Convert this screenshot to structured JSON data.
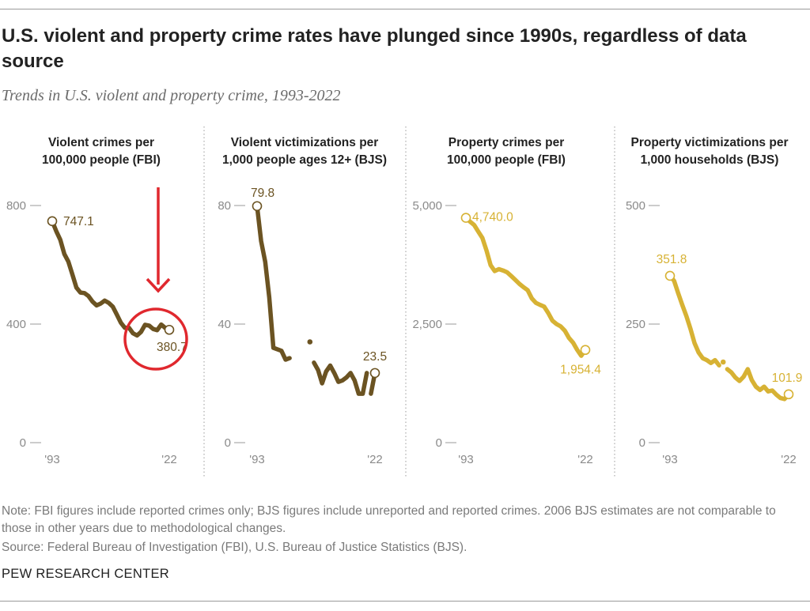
{
  "header": {
    "title": "U.S. violent and property crime rates have plunged since 1990s, regardless of data source",
    "subtitle": "Trends in U.S. violent and property crime, 1993-2022"
  },
  "footer": {
    "note": "Note: FBI figures include reported crimes only; BJS figures include unreported and reported crimes. 2006 BJS estimates are not comparable to those in other years due to methodological changes.",
    "source": "Source: Federal Bureau of Investigation (FBI), U.S. Bureau of Justice Statistics (BJS).",
    "brand": "PEW RESEARCH CENTER"
  },
  "colors": {
    "violent": "#6b5322",
    "property": "#d7b234",
    "axis": "#9a9a9a",
    "tick_text": "#8a8a8a",
    "annotation": "#e0282e"
  },
  "annotation": {
    "type": "arrow-and-circle",
    "panel": 0,
    "target_value": "380.7"
  },
  "chart_data": [
    {
      "type": "line",
      "title_lines": [
        "Violent crimes per",
        "100,000 people (FBI)"
      ],
      "color": "violent",
      "x_start_label": "'93",
      "x_end_label": "'22",
      "xlim": [
        1993,
        2022
      ],
      "ylim": [
        0,
        800
      ],
      "y_ticks": [
        0,
        400,
        800
      ],
      "y_tick_labels": [
        "0",
        "400",
        "800"
      ],
      "start_label": "747.1",
      "end_label": "380.7",
      "series": [
        {
          "name": "Violent crimes per 100,000 people (FBI)",
          "segments": [
            [
              [
                1993,
                747.1
              ],
              [
                1994,
                713.6
              ],
              [
                1995,
                684.5
              ],
              [
                1996,
                636.6
              ],
              [
                1997,
                611.0
              ],
              [
                1998,
                567.6
              ],
              [
                1999,
                523.0
              ],
              [
                2000,
                506.5
              ],
              [
                2001,
                504.5
              ],
              [
                2002,
                494.4
              ],
              [
                2003,
                475.8
              ],
              [
                2004,
                463.2
              ],
              [
                2005,
                469.0
              ],
              [
                2006,
                479.3
              ],
              [
                2007,
                471.8
              ],
              [
                2008,
                458.6
              ],
              [
                2009,
                431.9
              ],
              [
                2010,
                404.5
              ],
              [
                2011,
                387.1
              ],
              [
                2012,
                387.8
              ],
              [
                2013,
                369.1
              ],
              [
                2014,
                361.6
              ],
              [
                2015,
                373.7
              ],
              [
                2016,
                397.5
              ],
              [
                2017,
                394.9
              ],
              [
                2018,
                383.4
              ],
              [
                2019,
                379.4
              ],
              [
                2020,
                398.5
              ],
              [
                2021,
                387.0
              ],
              [
                2022,
                380.7
              ]
            ]
          ]
        }
      ]
    },
    {
      "type": "line",
      "title_lines": [
        "Violent victimizations per",
        "1,000 people ages 12+ (BJS)"
      ],
      "color": "violent",
      "x_start_label": "'93",
      "x_end_label": "'22",
      "xlim": [
        1993,
        2022
      ],
      "ylim": [
        0,
        80
      ],
      "y_ticks": [
        0,
        40,
        80
      ],
      "y_tick_labels": [
        "0",
        "40",
        "80"
      ],
      "start_label": "79.8",
      "end_label": "23.5",
      "series": [
        {
          "name": "Violent victimizations per 1,000 people ages 12+ (BJS)",
          "segments": [
            [
              [
                1993,
                79.8
              ],
              [
                1994,
                68.0
              ],
              [
                1995,
                61.0
              ],
              [
                1996,
                49.0
              ],
              [
                1997,
                32.0
              ],
              [
                1998,
                31.5
              ],
              [
                1999,
                31.0
              ],
              [
                2000,
                28.0
              ],
              [
                2001,
                28.5
              ]
            ],
            [
              [
                2006,
                34.0
              ]
            ],
            [
              [
                2007,
                27.0
              ],
              [
                2008,
                24.5
              ],
              [
                2009,
                20.0
              ],
              [
                2010,
                24.0
              ],
              [
                2011,
                26.0
              ],
              [
                2012,
                23.5
              ],
              [
                2013,
                20.5
              ],
              [
                2014,
                21.0
              ],
              [
                2015,
                22.0
              ],
              [
                2016,
                23.5
              ],
              [
                2017,
                21.0
              ],
              [
                2018,
                16.5
              ],
              [
                2019,
                16.5
              ],
              [
                2020,
                23.5
              ]
            ],
            [
              [
                2021,
                16.5
              ],
              [
                2022,
                23.5
              ]
            ]
          ]
        }
      ]
    },
    {
      "type": "line",
      "title_lines": [
        "Property crimes per",
        "100,000 people (FBI)"
      ],
      "color": "property",
      "x_start_label": "'93",
      "x_end_label": "'22",
      "xlim": [
        1993,
        2022
      ],
      "ylim": [
        0,
        5000
      ],
      "y_ticks": [
        0,
        2500,
        5000
      ],
      "y_tick_labels": [
        "0",
        "2,500",
        "5,000"
      ],
      "start_label": "4,740.0",
      "end_label": "1,954.4",
      "series": [
        {
          "name": "Property crimes per 100,000 people (FBI)",
          "segments": [
            [
              [
                1993,
                4740.0
              ],
              [
                1994,
                4660.2
              ],
              [
                1995,
                4590.5
              ],
              [
                1996,
                4451.0
              ],
              [
                1997,
                4316.3
              ],
              [
                1998,
                4052.5
              ],
              [
                1999,
                3743.6
              ],
              [
                2000,
                3618.3
              ],
              [
                2001,
                3658.1
              ],
              [
                2002,
                3630.6
              ],
              [
                2003,
                3591.2
              ],
              [
                2004,
                3514.1
              ],
              [
                2005,
                3431.5
              ],
              [
                2006,
                3346.6
              ],
              [
                2007,
                3276.4
              ],
              [
                2008,
                3214.6
              ],
              [
                2009,
                3041.3
              ],
              [
                2010,
                2945.9
              ],
              [
                2011,
                2905.4
              ],
              [
                2012,
                2868.0
              ],
              [
                2013,
                2733.6
              ],
              [
                2014,
                2574.1
              ],
              [
                2015,
                2500.5
              ],
              [
                2016,
                2451.6
              ],
              [
                2017,
                2362.2
              ],
              [
                2018,
                2209.8
              ],
              [
                2019,
                2109.9
              ],
              [
                2020,
                1958.2
              ],
              [
                2021,
                1832.3
              ],
              [
                2022,
                1954.4
              ]
            ]
          ]
        }
      ]
    },
    {
      "type": "line",
      "title_lines": [
        "Property victimizations per",
        "1,000 households (BJS)"
      ],
      "color": "property",
      "x_start_label": "'93",
      "x_end_label": "'22",
      "xlim": [
        1993,
        2022
      ],
      "ylim": [
        0,
        500
      ],
      "y_ticks": [
        0,
        250,
        500
      ],
      "y_tick_labels": [
        "0",
        "250",
        "500"
      ],
      "start_label": "351.8",
      "end_label": "101.9",
      "series": [
        {
          "name": "Property victimizations per 1,000 households (BJS)",
          "segments": [
            [
              [
                1993,
                351.8
              ],
              [
                1994,
                341.2
              ],
              [
                1995,
                315.5
              ],
              [
                1996,
                290.5
              ],
              [
                1997,
                267.0
              ],
              [
                1998,
                240.0
              ],
              [
                1999,
                210.0
              ],
              [
                2000,
                190.0
              ],
              [
                2001,
                178.0
              ],
              [
                2002,
                174.0
              ],
              [
                2003,
                168.0
              ],
              [
                2004,
                174.0
              ],
              [
                2005,
                163.0
              ]
            ],
            [
              [
                2006,
                170.0
              ]
            ],
            [
              [
                2007,
                155.0
              ],
              [
                2008,
                148.0
              ],
              [
                2009,
                137.0
              ],
              [
                2010,
                130.0
              ],
              [
                2011,
                139.0
              ],
              [
                2012,
                155.0
              ],
              [
                2013,
                132.0
              ],
              [
                2014,
                118.0
              ],
              [
                2015,
                111.0
              ],
              [
                2016,
                118.0
              ],
              [
                2017,
                108.0
              ],
              [
                2018,
                110.0
              ],
              [
                2019,
                101.0
              ],
              [
                2020,
                94.0
              ],
              [
                2021,
                92.0
              ],
              [
                2022,
                101.9
              ]
            ]
          ]
        }
      ]
    }
  ]
}
